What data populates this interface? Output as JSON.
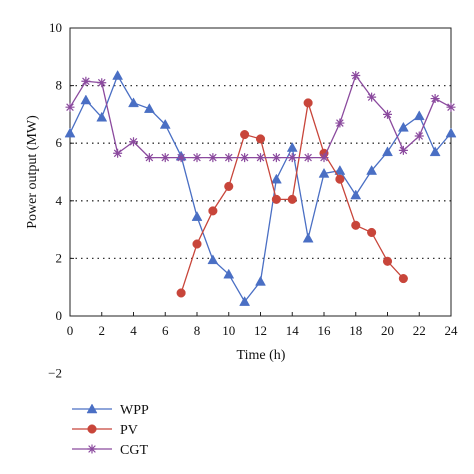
{
  "chart_data": {
    "type": "line",
    "title": "",
    "xlabel": "Time (h)",
    "ylabel": "Power output (MW)",
    "xlim": [
      0,
      24
    ],
    "ylim": [
      -2,
      10
    ],
    "plot_ylim": [
      0,
      10
    ],
    "x_ticks": [
      0,
      2,
      4,
      6,
      8,
      10,
      12,
      14,
      16,
      18,
      20,
      22,
      24
    ],
    "y_ticks": [
      -2,
      0,
      2,
      4,
      6,
      8,
      10
    ],
    "grid": "horizontal dotted",
    "legend_position": "bottom-left",
    "series": [
      {
        "name": "WPP",
        "color": "#4a6fc4",
        "marker": "triangle",
        "x": [
          0,
          1,
          2,
          3,
          4,
          5,
          6,
          7,
          8,
          9,
          10,
          11,
          12,
          13,
          14,
          15,
          16,
          17,
          18,
          19,
          20,
          21,
          22,
          23,
          24
        ],
        "y": [
          6.35,
          7.5,
          6.9,
          8.35,
          7.4,
          7.2,
          6.65,
          5.55,
          3.45,
          1.95,
          1.45,
          0.5,
          1.2,
          4.75,
          5.85,
          2.7,
          4.95,
          5.05,
          4.2,
          5.05,
          5.7,
          6.55,
          6.95,
          5.7,
          6.35
        ]
      },
      {
        "name": "PV",
        "color": "#c8453a",
        "marker": "circle",
        "x": [
          7,
          8,
          9,
          10,
          11,
          12,
          13,
          14,
          15,
          16,
          17,
          18,
          19,
          20,
          21
        ],
        "y": [
          0.8,
          2.5,
          3.65,
          4.5,
          6.3,
          6.15,
          4.05,
          4.05,
          7.4,
          5.65,
          4.75,
          3.15,
          2.9,
          1.9,
          1.3
        ]
      },
      {
        "name": "CGT",
        "color": "#8b4a9e",
        "marker": "star",
        "x": [
          0,
          1,
          2,
          3,
          4,
          5,
          6,
          7,
          8,
          9,
          10,
          11,
          12,
          13,
          14,
          15,
          16,
          17,
          18,
          19,
          20,
          21,
          22,
          23,
          24
        ],
        "y": [
          7.25,
          8.15,
          8.1,
          5.65,
          6.05,
          5.5,
          5.5,
          5.5,
          5.5,
          5.5,
          5.5,
          5.5,
          5.5,
          5.5,
          5.5,
          5.5,
          5.5,
          6.7,
          8.35,
          7.6,
          7.0,
          5.75,
          6.25,
          7.55,
          7.25
        ]
      }
    ]
  }
}
